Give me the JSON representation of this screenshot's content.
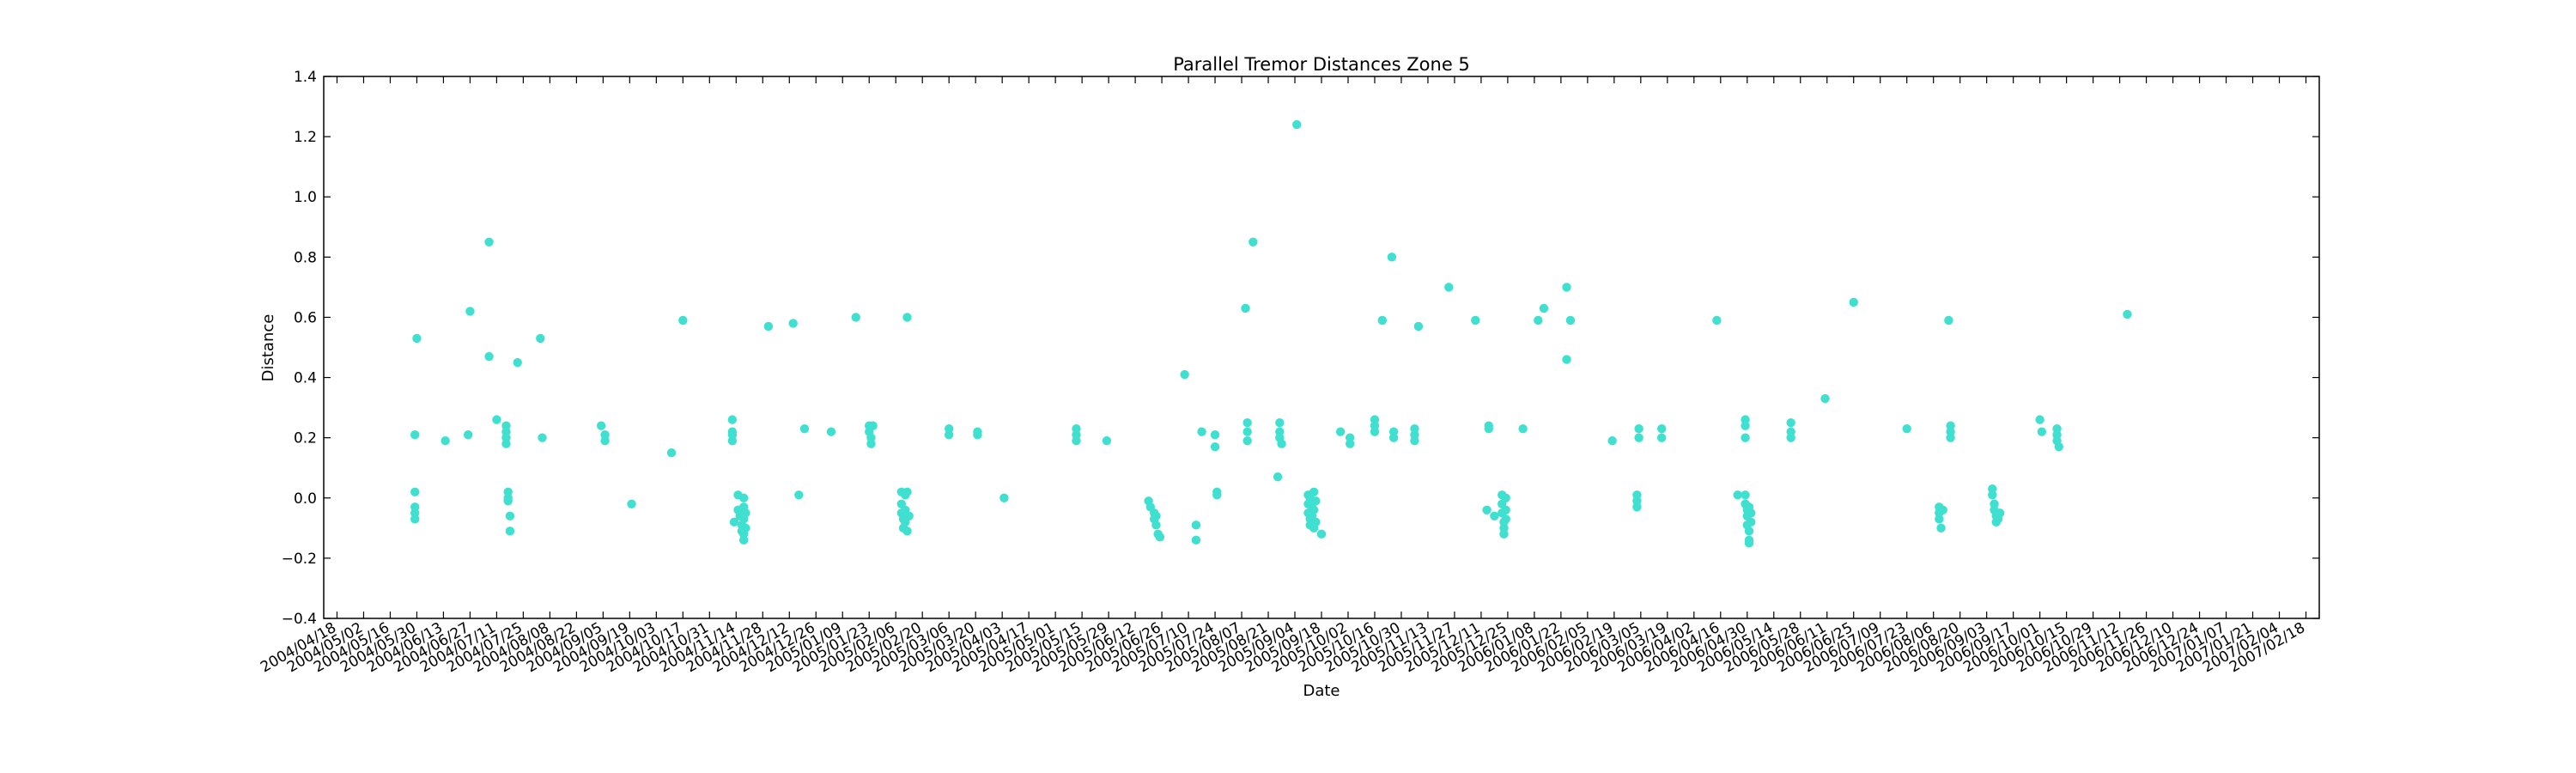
{
  "chart_data": {
    "type": "scatter",
    "title": "Parallel Tremor Distances Zone 5",
    "xlabel": "Date",
    "ylabel": "Distance",
    "ylim": [
      -0.4,
      1.4
    ],
    "yticks": [
      "−0.4",
      "−0.2",
      "0.0",
      "0.2",
      "0.4",
      "0.6",
      "0.8",
      "1.0",
      "1.2",
      "1.4"
    ],
    "ytick_values": [
      -0.4,
      -0.2,
      0.0,
      0.2,
      0.4,
      0.6,
      0.8,
      1.0,
      1.2,
      1.4
    ],
    "xlim": [
      "2004-04-11",
      "2007-02-25"
    ],
    "xticks": [
      "2004/04/18",
      "2004/05/02",
      "2004/05/16",
      "2004/05/30",
      "2004/06/13",
      "2004/06/27",
      "2004/07/11",
      "2004/07/25",
      "2004/08/08",
      "2004/08/22",
      "2004/09/05",
      "2004/09/19",
      "2004/10/03",
      "2004/10/17",
      "2004/10/31",
      "2004/11/14",
      "2004/11/28",
      "2004/12/12",
      "2004/12/26",
      "2005/01/09",
      "2005/01/23",
      "2005/02/06",
      "2005/02/20",
      "2005/03/06",
      "2005/03/20",
      "2005/04/03",
      "2005/04/17",
      "2005/05/01",
      "2005/05/15",
      "2005/05/29",
      "2005/06/12",
      "2005/06/26",
      "2005/07/10",
      "2005/07/24",
      "2005/08/07",
      "2005/08/21",
      "2005/09/04",
      "2005/09/18",
      "2005/10/02",
      "2005/10/16",
      "2005/10/30",
      "2005/11/13",
      "2005/11/27",
      "2005/12/11",
      "2005/12/25",
      "2006/01/08",
      "2006/01/22",
      "2006/02/05",
      "2006/02/19",
      "2006/03/05",
      "2006/03/19",
      "2006/04/02",
      "2006/04/16",
      "2006/04/30",
      "2006/05/14",
      "2006/05/28",
      "2006/06/11",
      "2006/06/25",
      "2006/07/09",
      "2006/07/23",
      "2006/08/06",
      "2006/08/20",
      "2006/09/03",
      "2006/09/17",
      "2006/10/01",
      "2006/10/15",
      "2006/10/29",
      "2006/11/12",
      "2006/11/26",
      "2006/12/10",
      "2006/12/24",
      "2007/01/07",
      "2007/01/21",
      "2007/02/04",
      "2007/02/18"
    ],
    "grid": false,
    "marker_color": "#40e0d0",
    "series": [
      {
        "points": [
          [
            "2004-05-29",
            0.21
          ],
          [
            "2004-05-29",
            0.02
          ],
          [
            "2004-05-29",
            -0.03
          ],
          [
            "2004-05-29",
            -0.05
          ],
          [
            "2004-05-29",
            -0.07
          ],
          [
            "2004-05-30",
            0.53
          ],
          [
            "2004-06-14",
            0.19
          ],
          [
            "2004-06-26",
            0.21
          ],
          [
            "2004-06-27",
            0.62
          ],
          [
            "2004-07-07",
            0.85
          ],
          [
            "2004-07-07",
            0.47
          ],
          [
            "2004-07-11",
            0.26
          ],
          [
            "2004-07-16",
            0.24
          ],
          [
            "2004-07-16",
            0.22
          ],
          [
            "2004-07-16",
            0.2
          ],
          [
            "2004-07-16",
            0.18
          ],
          [
            "2004-07-17",
            0.02
          ],
          [
            "2004-07-17",
            0.0
          ],
          [
            "2004-07-17",
            -0.01
          ],
          [
            "2004-07-18",
            -0.06
          ],
          [
            "2004-07-18",
            -0.11
          ],
          [
            "2004-07-22",
            0.45
          ],
          [
            "2004-08-03",
            0.53
          ],
          [
            "2004-08-04",
            0.2
          ],
          [
            "2004-09-04",
            0.24
          ],
          [
            "2004-09-06",
            0.21
          ],
          [
            "2004-09-06",
            0.19
          ],
          [
            "2004-09-20",
            -0.02
          ],
          [
            "2004-10-11",
            0.15
          ],
          [
            "2004-10-17",
            0.59
          ],
          [
            "2004-11-12",
            0.26
          ],
          [
            "2004-11-12",
            0.22
          ],
          [
            "2004-11-12",
            0.21
          ],
          [
            "2004-11-12",
            0.19
          ],
          [
            "2004-11-13",
            -0.08
          ],
          [
            "2004-11-15",
            0.01
          ],
          [
            "2004-11-15",
            -0.04
          ],
          [
            "2004-11-16",
            -0.06
          ],
          [
            "2004-11-17",
            -0.09
          ],
          [
            "2004-11-17",
            -0.11
          ],
          [
            "2004-11-18",
            0.0
          ],
          [
            "2004-11-18",
            -0.03
          ],
          [
            "2004-11-18",
            -0.07
          ],
          [
            "2004-11-18",
            -0.12
          ],
          [
            "2004-11-18",
            -0.14
          ],
          [
            "2004-11-19",
            -0.05
          ],
          [
            "2004-11-19",
            -0.1
          ],
          [
            "2004-12-01",
            0.57
          ],
          [
            "2004-12-14",
            0.58
          ],
          [
            "2004-12-17",
            0.01
          ],
          [
            "2004-12-20",
            0.23
          ],
          [
            "2005-01-03",
            0.22
          ],
          [
            "2005-01-16",
            0.6
          ],
          [
            "2005-01-23",
            0.24
          ],
          [
            "2005-01-23",
            0.22
          ],
          [
            "2005-01-24",
            0.2
          ],
          [
            "2005-01-24",
            0.18
          ],
          [
            "2005-01-25",
            0.24
          ],
          [
            "2005-02-09",
            0.02
          ],
          [
            "2005-02-09",
            -0.02
          ],
          [
            "2005-02-09",
            -0.05
          ],
          [
            "2005-02-10",
            -0.07
          ],
          [
            "2005-02-10",
            -0.1
          ],
          [
            "2005-02-11",
            0.01
          ],
          [
            "2005-02-11",
            -0.04
          ],
          [
            "2005-02-11",
            -0.08
          ],
          [
            "2005-02-12",
            -0.11
          ],
          [
            "2005-02-12",
            0.02
          ],
          [
            "2005-02-13",
            -0.06
          ],
          [
            "2005-02-12",
            0.6
          ],
          [
            "2005-03-06",
            0.23
          ],
          [
            "2005-03-06",
            0.21
          ],
          [
            "2005-03-21",
            0.22
          ],
          [
            "2005-03-21",
            0.21
          ],
          [
            "2005-04-04",
            0.0
          ],
          [
            "2005-05-12",
            0.23
          ],
          [
            "2005-05-12",
            0.21
          ],
          [
            "2005-05-12",
            0.19
          ],
          [
            "2005-05-28",
            0.19
          ],
          [
            "2005-06-19",
            -0.01
          ],
          [
            "2005-06-20",
            -0.03
          ],
          [
            "2005-06-22",
            -0.05
          ],
          [
            "2005-06-22",
            -0.07
          ],
          [
            "2005-06-23",
            -0.09
          ],
          [
            "2005-06-24",
            -0.12
          ],
          [
            "2005-06-25",
            -0.13
          ],
          [
            "2005-06-23",
            -0.06
          ],
          [
            "2005-07-08",
            0.41
          ],
          [
            "2005-07-14",
            -0.09
          ],
          [
            "2005-07-14",
            -0.14
          ],
          [
            "2005-07-17",
            0.22
          ],
          [
            "2005-07-24",
            0.21
          ],
          [
            "2005-07-24",
            0.17
          ],
          [
            "2005-07-25",
            0.02
          ],
          [
            "2005-07-25",
            0.01
          ],
          [
            "2005-08-09",
            0.63
          ],
          [
            "2005-08-10",
            0.25
          ],
          [
            "2005-08-10",
            0.22
          ],
          [
            "2005-08-10",
            0.19
          ],
          [
            "2005-08-13",
            0.85
          ],
          [
            "2005-08-27",
            0.25
          ],
          [
            "2005-08-27",
            0.22
          ],
          [
            "2005-08-27",
            0.2
          ],
          [
            "2005-08-28",
            0.18
          ],
          [
            "2005-08-26",
            0.07
          ],
          [
            "2005-09-05",
            1.24
          ],
          [
            "2005-09-11",
            0.01
          ],
          [
            "2005-09-11",
            -0.02
          ],
          [
            "2005-09-11",
            -0.05
          ],
          [
            "2005-09-12",
            -0.07
          ],
          [
            "2005-09-12",
            0.0
          ],
          [
            "2005-09-12",
            -0.09
          ],
          [
            "2005-09-13",
            -0.03
          ],
          [
            "2005-09-13",
            -0.06
          ],
          [
            "2005-09-14",
            0.02
          ],
          [
            "2005-09-14",
            -0.04
          ],
          [
            "2005-09-14",
            -0.1
          ],
          [
            "2005-09-15",
            -0.01
          ],
          [
            "2005-09-15",
            -0.08
          ],
          [
            "2005-09-18",
            -0.12
          ],
          [
            "2005-09-28",
            0.22
          ],
          [
            "2005-10-03",
            0.2
          ],
          [
            "2005-10-03",
            0.18
          ],
          [
            "2005-10-16",
            0.26
          ],
          [
            "2005-10-16",
            0.24
          ],
          [
            "2005-10-16",
            0.22
          ],
          [
            "2005-10-20",
            0.59
          ],
          [
            "2005-10-25",
            0.8
          ],
          [
            "2005-10-26",
            0.22
          ],
          [
            "2005-10-26",
            0.2
          ],
          [
            "2005-11-06",
            0.23
          ],
          [
            "2005-11-06",
            0.21
          ],
          [
            "2005-11-06",
            0.19
          ],
          [
            "2005-11-08",
            0.57
          ],
          [
            "2005-11-24",
            0.7
          ],
          [
            "2005-12-08",
            0.59
          ],
          [
            "2005-12-15",
            0.24
          ],
          [
            "2005-12-15",
            0.23
          ],
          [
            "2005-12-14",
            -0.04
          ],
          [
            "2005-12-18",
            -0.06
          ],
          [
            "2005-12-22",
            0.01
          ],
          [
            "2005-12-22",
            -0.02
          ],
          [
            "2005-12-22",
            -0.05
          ],
          [
            "2005-12-23",
            -0.08
          ],
          [
            "2005-12-23",
            -0.1
          ],
          [
            "2005-12-23",
            -0.12
          ],
          [
            "2005-12-24",
            0.0
          ],
          [
            "2005-12-24",
            -0.04
          ],
          [
            "2005-12-24",
            -0.07
          ],
          [
            "2006-01-02",
            0.23
          ],
          [
            "2006-01-10",
            0.59
          ],
          [
            "2006-01-13",
            0.63
          ],
          [
            "2006-01-25",
            0.7
          ],
          [
            "2006-01-25",
            0.46
          ],
          [
            "2006-01-27",
            0.59
          ],
          [
            "2006-02-18",
            0.19
          ],
          [
            "2006-03-04",
            0.23
          ],
          [
            "2006-03-04",
            0.2
          ],
          [
            "2006-03-03",
            0.01
          ],
          [
            "2006-03-03",
            -0.01
          ],
          [
            "2006-03-03",
            -0.03
          ],
          [
            "2006-03-16",
            0.23
          ],
          [
            "2006-03-16",
            0.2
          ],
          [
            "2006-04-14",
            0.59
          ],
          [
            "2006-04-25",
            0.01
          ],
          [
            "2006-04-29",
            0.26
          ],
          [
            "2006-04-29",
            0.24
          ],
          [
            "2006-04-29",
            0.2
          ],
          [
            "2006-04-29",
            0.01
          ],
          [
            "2006-04-29",
            -0.02
          ],
          [
            "2006-04-30",
            -0.04
          ],
          [
            "2006-04-30",
            -0.06
          ],
          [
            "2006-04-30",
            -0.09
          ],
          [
            "2006-05-01",
            -0.11
          ],
          [
            "2006-05-01",
            -0.14
          ],
          [
            "2006-05-01",
            -0.15
          ],
          [
            "2006-05-01",
            -0.03
          ],
          [
            "2006-05-02",
            -0.05
          ],
          [
            "2006-05-02",
            -0.08
          ],
          [
            "2006-05-23",
            0.25
          ],
          [
            "2006-05-23",
            0.22
          ],
          [
            "2006-05-23",
            0.2
          ],
          [
            "2006-06-10",
            0.33
          ],
          [
            "2006-06-25",
            0.65
          ],
          [
            "2006-07-23",
            0.23
          ],
          [
            "2006-08-09",
            -0.03
          ],
          [
            "2006-08-09",
            -0.05
          ],
          [
            "2006-08-09",
            -0.07
          ],
          [
            "2006-08-10",
            -0.1
          ],
          [
            "2006-08-11",
            -0.04
          ],
          [
            "2006-08-14",
            0.59
          ],
          [
            "2006-08-15",
            0.24
          ],
          [
            "2006-08-15",
            0.22
          ],
          [
            "2006-08-15",
            0.2
          ],
          [
            "2006-09-06",
            0.03
          ],
          [
            "2006-09-06",
            0.01
          ],
          [
            "2006-09-07",
            -0.02
          ],
          [
            "2006-09-07",
            -0.04
          ],
          [
            "2006-09-08",
            -0.06
          ],
          [
            "2006-09-08",
            -0.08
          ],
          [
            "2006-09-09",
            -0.07
          ],
          [
            "2006-09-10",
            -0.05
          ],
          [
            "2006-10-01",
            0.26
          ],
          [
            "2006-10-02",
            0.22
          ],
          [
            "2006-10-10",
            0.23
          ],
          [
            "2006-10-10",
            0.21
          ],
          [
            "2006-10-10",
            0.19
          ],
          [
            "2006-10-11",
            0.17
          ],
          [
            "2006-11-16",
            0.61
          ]
        ]
      }
    ]
  }
}
